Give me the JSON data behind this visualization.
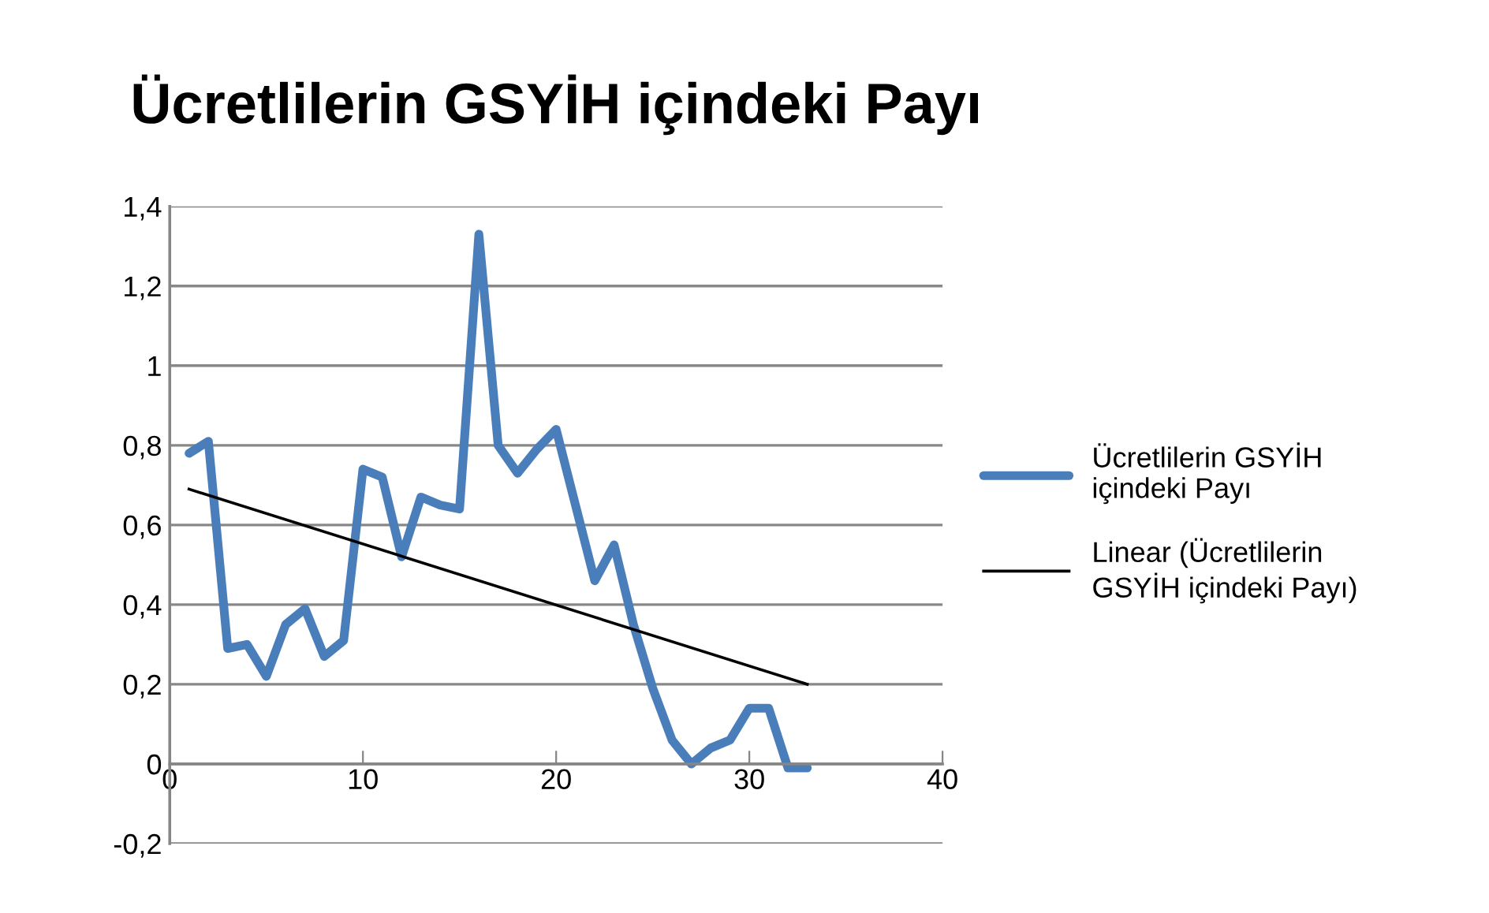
{
  "chart_data": {
    "type": "line",
    "title": "Ücretlilerin GSYİH içindeki Payı",
    "x": [
      1,
      2,
      3,
      4,
      5,
      6,
      7,
      8,
      9,
      10,
      11,
      12,
      13,
      14,
      15,
      16,
      17,
      18,
      19,
      20,
      21,
      22,
      23,
      24,
      25,
      26,
      27,
      28,
      29,
      30,
      31,
      32,
      33
    ],
    "series": [
      {
        "name": "Ücretlilerin GSYİH içindeki Payı",
        "color": "#4a7ebb",
        "values": [
          0.78,
          0.81,
          0.29,
          0.3,
          0.22,
          0.35,
          0.39,
          0.27,
          0.31,
          0.74,
          0.72,
          0.52,
          0.67,
          0.65,
          0.64,
          1.33,
          0.8,
          0.73,
          0.79,
          0.84,
          0.65,
          0.46,
          0.55,
          0.35,
          0.19,
          0.06,
          0.0,
          0.04,
          0.06,
          0.14,
          0.14,
          -0.01,
          -0.01
        ]
      },
      {
        "name": "Linear (Ücretlilerin GSYİH içindeki Payı)",
        "color": "#000000",
        "x": [
          1,
          33
        ],
        "values": [
          0.69,
          0.2
        ]
      }
    ],
    "xlim": [
      0,
      40
    ],
    "xticks": [
      0,
      10,
      20,
      30,
      40
    ],
    "ylim": [
      -0.2,
      1.4
    ],
    "yticks": [
      {
        "value": -0.2,
        "label": "-0,2"
      },
      0,
      {
        "value": 0.2,
        "label": "0,2"
      },
      {
        "value": 0.4,
        "label": "0,4"
      },
      {
        "value": 0.6,
        "label": "0,6"
      },
      {
        "value": 0.8,
        "label": "0,8"
      },
      1,
      {
        "value": 1.2,
        "label": "1,2"
      },
      {
        "value": 1.4,
        "label": "1,4"
      }
    ],
    "grid": "y",
    "legend": "right",
    "line_style": "solid",
    "marker": "none"
  }
}
